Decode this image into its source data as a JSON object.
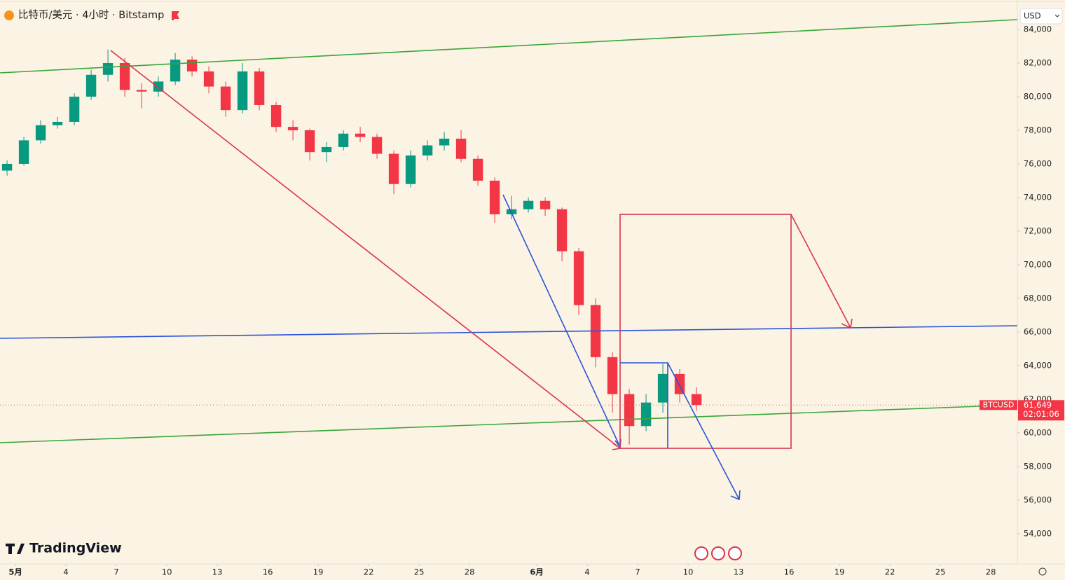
{
  "chart_data": {
    "type": "candlestick",
    "title": "比特币/美元 · 4小时 · Bitstamp",
    "currency": "USD",
    "brand": "TradingView",
    "symbol": "BTCUSD",
    "last_price": {
      "value": 61649,
      "label": "61,649"
    },
    "countdown": "02:01:06",
    "up_color": "#089981",
    "down_color": "#f23645",
    "grid": false,
    "x": [
      -0.5,
      0.5,
      1.5,
      2.5,
      3.5,
      4.5,
      5.5,
      6.5,
      7.5,
      8.5,
      9.5,
      10.5,
      11.5,
      12.5,
      13.5,
      14.5,
      15.5,
      16.5,
      17.5,
      18.5,
      19.5,
      20.5,
      21.5,
      22.5,
      23.5,
      24.5,
      25.5,
      26.5,
      27.5,
      28.5,
      29.5,
      30.5,
      31.5,
      32.5,
      33.5,
      34.5,
      35.5,
      36.5,
      37.5,
      38.5,
      39.5,
      40.5
    ],
    "open": [
      75600,
      76000,
      77400,
      78300,
      78500,
      80000,
      81300,
      82000,
      80400,
      80300,
      80900,
      82200,
      81500,
      80600,
      79200,
      81500,
      79500,
      78200,
      78000,
      76700,
      77000,
      77800,
      77600,
      76600,
      74800,
      76500,
      77100,
      77500,
      76300,
      75000,
      73000,
      73300,
      73800,
      73300,
      70800,
      67600,
      64500,
      62300,
      60400,
      61800,
      63500,
      62300
    ],
    "high": [
      76200,
      77600,
      78600,
      78800,
      80200,
      81600,
      82800,
      82300,
      80800,
      81200,
      82600,
      82400,
      81800,
      80900,
      82000,
      81700,
      79700,
      78600,
      78100,
      77300,
      78000,
      78200,
      77800,
      76800,
      76800,
      77400,
      77900,
      78000,
      76500,
      75200,
      74100,
      74000,
      74000,
      73400,
      71000,
      68000,
      64800,
      62600,
      62300,
      64100,
      63800,
      62700
    ],
    "low": [
      75300,
      75900,
      77200,
      78100,
      78300,
      79800,
      80900,
      80000,
      79300,
      80000,
      80700,
      81200,
      80200,
      78800,
      79000,
      79200,
      77900,
      77400,
      76200,
      76100,
      76800,
      77300,
      76300,
      74200,
      74600,
      76200,
      76800,
      76100,
      74700,
      72500,
      72700,
      73100,
      72900,
      70200,
      67000,
      63900,
      61200,
      59300,
      60100,
      61200,
      61800,
      61300
    ],
    "close": [
      76000,
      77400,
      78300,
      78500,
      80000,
      81300,
      82000,
      80400,
      80300,
      80900,
      82200,
      81500,
      80600,
      79200,
      81500,
      79500,
      78200,
      78000,
      76700,
      77000,
      77800,
      77600,
      76600,
      74800,
      76500,
      77100,
      77500,
      76300,
      75000,
      73000,
      73300,
      73800,
      73300,
      70800,
      67600,
      64500,
      62300,
      60400,
      61800,
      63500,
      62300,
      61649
    ],
    "xlim": [
      -0.92,
      59.58
    ],
    "xticks": [
      {
        "value": 0,
        "label": "5月"
      },
      {
        "value": 3,
        "label": "4"
      },
      {
        "value": 6,
        "label": "7"
      },
      {
        "value": 9,
        "label": "10"
      },
      {
        "value": 12,
        "label": "13"
      },
      {
        "value": 15,
        "label": "16"
      },
      {
        "value": 18,
        "label": "19"
      },
      {
        "value": 21,
        "label": "22"
      },
      {
        "value": 24,
        "label": "25"
      },
      {
        "value": 27,
        "label": "28"
      },
      {
        "value": 31,
        "label": "6月"
      },
      {
        "value": 34,
        "label": "4"
      },
      {
        "value": 37,
        "label": "7"
      },
      {
        "value": 40,
        "label": "10"
      },
      {
        "value": 43,
        "label": "13"
      },
      {
        "value": 46,
        "label": "16"
      },
      {
        "value": 49,
        "label": "19"
      },
      {
        "value": 52,
        "label": "22"
      },
      {
        "value": 55,
        "label": "25"
      },
      {
        "value": 58,
        "label": "28"
      }
    ],
    "ylim": [
      52200,
      85750
    ],
    "yticks": [
      {
        "value": 54000,
        "label": "54,000"
      },
      {
        "value": 56000,
        "label": "56,000"
      },
      {
        "value": 58000,
        "label": "58,000"
      },
      {
        "value": 60000,
        "label": "60,000"
      },
      {
        "value": 62000,
        "label": "62,000"
      },
      {
        "value": 64000,
        "label": "64,000"
      },
      {
        "value": 66000,
        "label": "66,000"
      },
      {
        "value": 68000,
        "label": "68,000"
      },
      {
        "value": 70000,
        "label": "70,000"
      },
      {
        "value": 72000,
        "label": "72,000"
      },
      {
        "value": 74000,
        "label": "74,000"
      },
      {
        "value": 76000,
        "label": "76,000"
      },
      {
        "value": 78000,
        "label": "78,000"
      },
      {
        "value": 80000,
        "label": "80,000"
      },
      {
        "value": 82000,
        "label": "82,000"
      },
      {
        "value": 84000,
        "label": "84,000"
      }
    ]
  }
}
